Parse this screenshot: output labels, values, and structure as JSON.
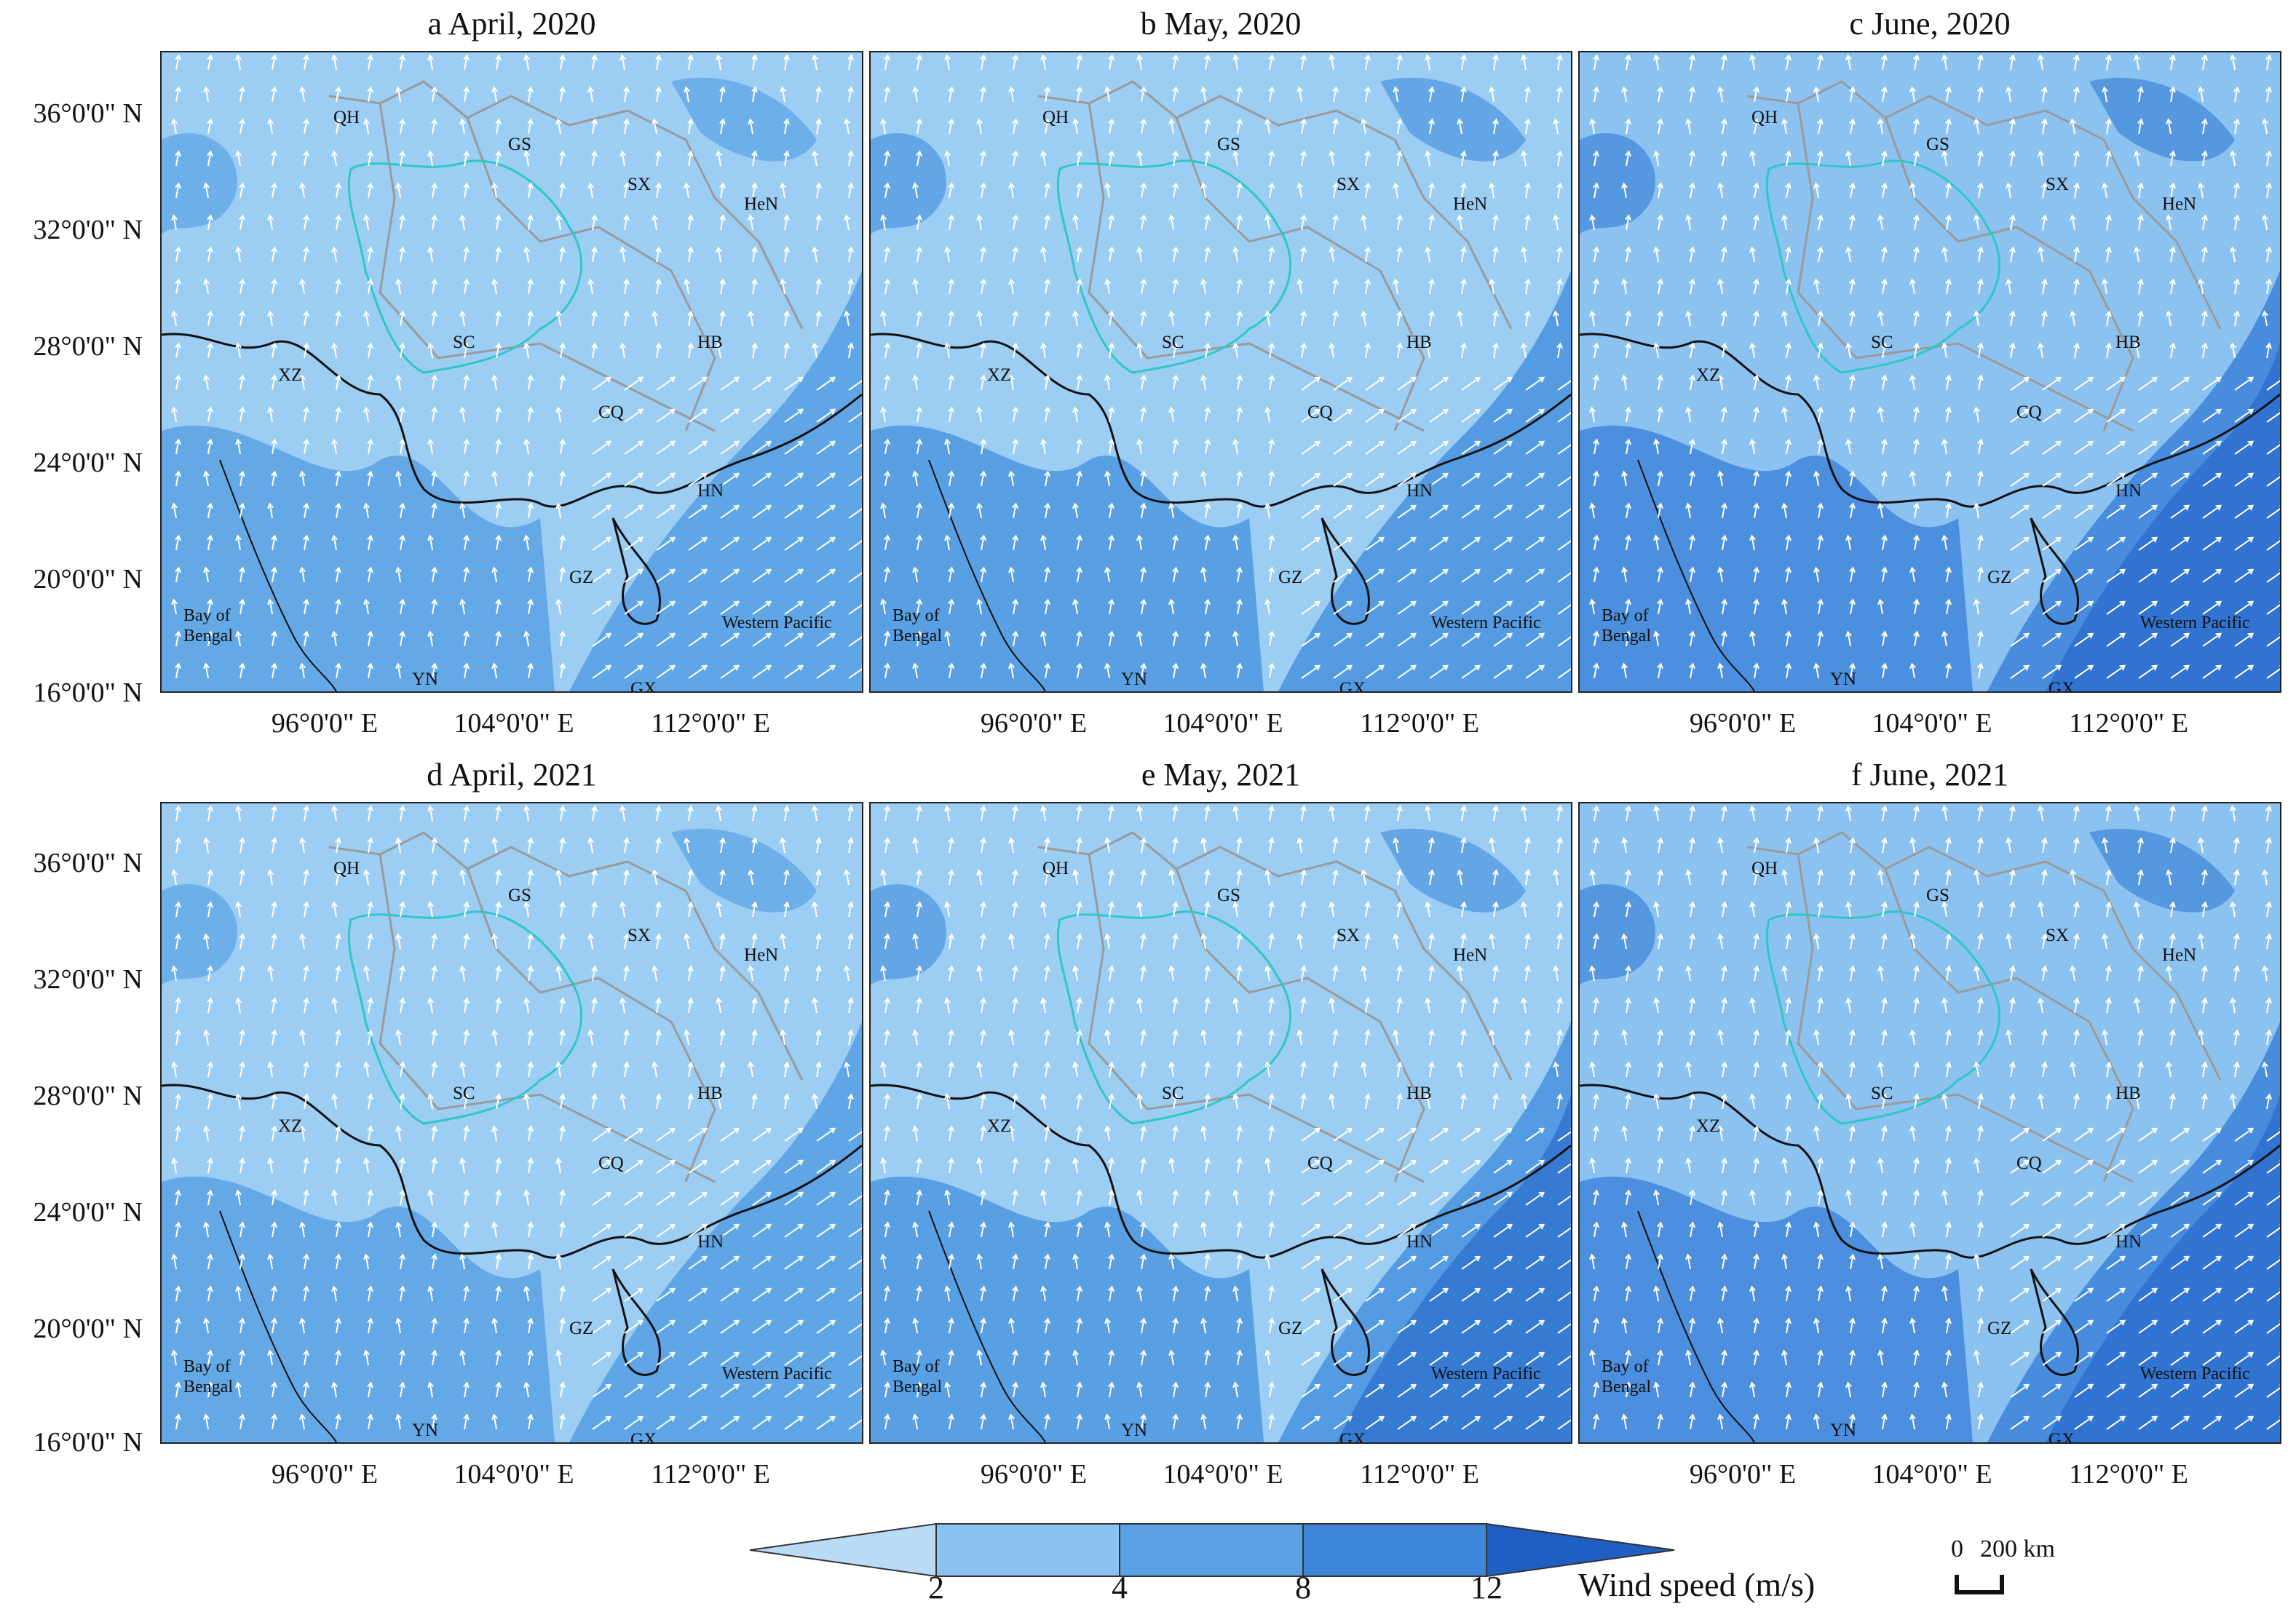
{
  "panels": [
    {
      "title": "a April, 2020",
      "fill": "#9ccdf2",
      "band_color": "#5aa2e4",
      "dark_band": false
    },
    {
      "title": "b May, 2020",
      "fill": "#9ccdf2",
      "band_color": "#4d96e0",
      "dark_band": false
    },
    {
      "title": "c June, 2020",
      "fill": "#8cc2ef",
      "band_color": "#3f86da",
      "dark_band": true
    },
    {
      "title": "d April, 2021",
      "fill": "#9ccdf2",
      "band_color": "#5aa2e4",
      "dark_band": false
    },
    {
      "title": "e May, 2021",
      "fill": "#9ccdf2",
      "band_color": "#4d96e0",
      "dark_band": true
    },
    {
      "title": "f June, 2021",
      "fill": "#8cc2ef",
      "band_color": "#3f86da",
      "dark_band": true
    }
  ],
  "y_ticks": [
    "36°0'0\" N",
    "32°0'0\" N",
    "28°0'0\" N",
    "24°0'0\" N",
    "20°0'0\" N",
    "16°0'0\" N"
  ],
  "x_ticks": [
    "96°0'0\" E",
    "104°0'0\" E",
    "112°0'0\" E"
  ],
  "provinces": [
    "QH",
    "GS",
    "SX",
    "HeN",
    "XZ",
    "SC",
    "HB",
    "CQ",
    "HN",
    "GZ",
    "YN",
    "GX"
  ],
  "seas": {
    "bay": "Bay of Bengal",
    "pacific": "Western Pacific"
  },
  "colorbar": {
    "title": "Wind speed (m/s)",
    "ticks": [
      "2",
      "4",
      "8",
      "12"
    ],
    "colors": [
      "#b9dcf6",
      "#8cc2ef",
      "#5aa2e4",
      "#3f86da",
      "#1f5fc4",
      "#1a19c8"
    ]
  },
  "scalebar": {
    "zero": "0",
    "distance": "200 km"
  }
}
